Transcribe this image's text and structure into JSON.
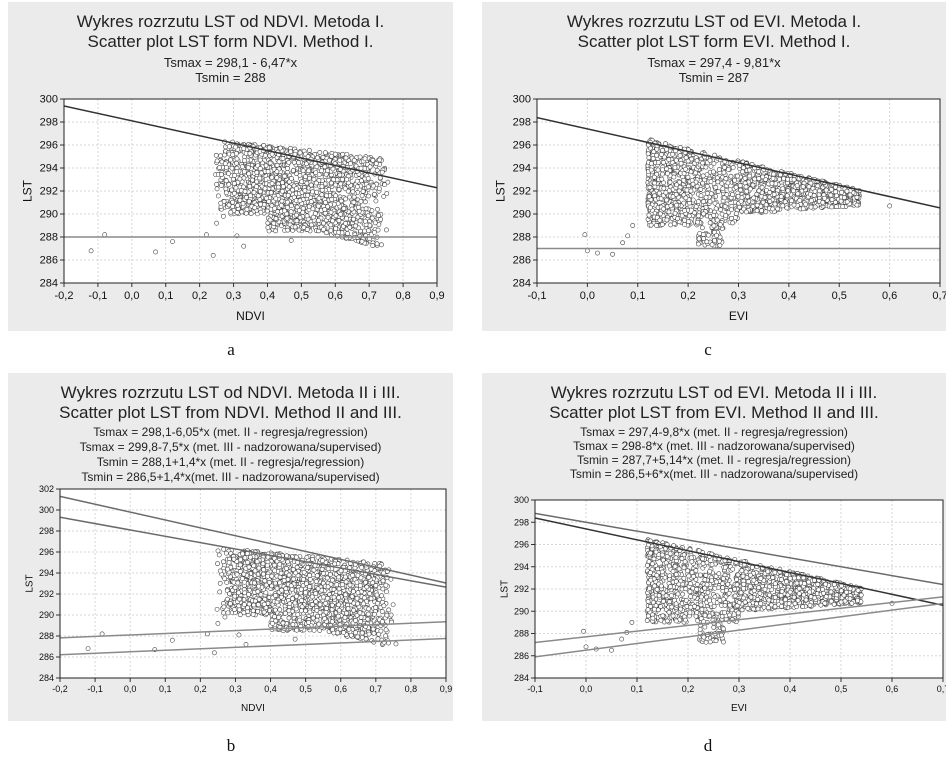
{
  "captions": [
    "a",
    "c",
    "b",
    "d"
  ],
  "chart_data": [
    {
      "id": "a",
      "type": "scatter",
      "title": [
        "Wykres rozrzutu LST od NDVI. Metoda I.",
        "Scatter plot LST form NDVI. Method I."
      ],
      "equations": [
        "Tsmax = 298,1 - 6,47*x",
        "Tsmin = 288"
      ],
      "xlabel": "NDVI",
      "ylabel": "LST",
      "xlim": [
        -0.2,
        0.9
      ],
      "ylim": [
        284,
        300
      ],
      "xticks": [
        "-0,2",
        "-0,1",
        "0,0",
        "0,1",
        "0,2",
        "0,3",
        "0,4",
        "0,5",
        "0,6",
        "0,7",
        "0,8",
        "0,9"
      ],
      "yticks": [
        "284",
        "286",
        "288",
        "290",
        "292",
        "294",
        "296",
        "298",
        "300"
      ],
      "grid": true,
      "lines": [
        {
          "name": "Tsmax",
          "intercept": 298.1,
          "slope": -6.47,
          "color": "#333333"
        },
        {
          "name": "Tsmin",
          "intercept": 288,
          "slope": 0,
          "color": "#8a8a8a"
        }
      ],
      "cluster": {
        "x_range": [
          0.22,
          0.77
        ],
        "y_range": [
          287,
          296.2
        ]
      },
      "outliers": [
        [
          -0.12,
          286.8
        ],
        [
          -0.08,
          288.2
        ],
        [
          0.07,
          286.7
        ],
        [
          0.12,
          287.6
        ],
        [
          0.24,
          286.4
        ],
        [
          0.22,
          288.2
        ],
        [
          0.31,
          288.1
        ],
        [
          0.33,
          287.2
        ],
        [
          0.27,
          289.8
        ],
        [
          0.25,
          289.2
        ],
        [
          0.47,
          287.7
        ]
      ]
    },
    {
      "id": "c",
      "type": "scatter",
      "title": [
        "Wykres rozrzutu LST od EVI. Metoda I.",
        "Scatter plot LST form EVI. Method I."
      ],
      "equations": [
        "Tsmax = 297,4 - 9,81*x",
        "Tsmin = 287"
      ],
      "xlabel": "EVI",
      "ylabel": "LST",
      "xlim": [
        -0.1,
        0.7
      ],
      "ylim": [
        284,
        300
      ],
      "xticks": [
        "-0,1",
        "0,0",
        "0,1",
        "0,2",
        "0,3",
        "0,4",
        "0,5",
        "0,6",
        "0,7"
      ],
      "yticks": [
        "284",
        "286",
        "288",
        "290",
        "292",
        "294",
        "296",
        "298",
        "300"
      ],
      "grid": true,
      "lines": [
        {
          "name": "Tsmax",
          "intercept": 297.4,
          "slope": -9.81,
          "color": "#333333"
        },
        {
          "name": "Tsmin",
          "intercept": 287,
          "slope": 0,
          "color": "#8a8a8a"
        }
      ],
      "cluster": {
        "x_range": [
          0.08,
          0.56
        ],
        "y_range": [
          287,
          296.2
        ]
      },
      "outliers": [
        [
          -0.005,
          288.2
        ],
        [
          0.0,
          286.8
        ],
        [
          0.02,
          286.6
        ],
        [
          0.05,
          286.5
        ],
        [
          0.07,
          287.5
        ],
        [
          0.08,
          288.1
        ],
        [
          0.09,
          289.0
        ],
        [
          0.6,
          290.7
        ]
      ]
    },
    {
      "id": "b",
      "type": "scatter",
      "title": [
        "Wykres rozrzutu LST od NDVI. Metoda II i III.",
        "Scatter plot LST from NDVI. Method II and III."
      ],
      "equations": [
        "Tsmax = 298,1-6,05*x (met. II - regresja/regression)",
        "Tsmax = 299,8-7,5*x (met. III - nadzorowana/supervised)",
        "Tsmin = 288,1+1,4*x (met. II - regresja/regression)",
        "Tsmin = 286,5+1,4*x(met. III - nadzorowana/supervised)"
      ],
      "xlabel": "NDVI",
      "ylabel": "LST",
      "xlim": [
        -0.2,
        0.9
      ],
      "ylim": [
        284,
        302
      ],
      "xticks": [
        "-0,2",
        "-0,1",
        "0,0",
        "0,1",
        "0,2",
        "0,3",
        "0,4",
        "0,5",
        "0,6",
        "0,7",
        "0,8",
        "0,9"
      ],
      "yticks": [
        "284",
        "286",
        "288",
        "290",
        "292",
        "294",
        "296",
        "298",
        "300",
        "302"
      ],
      "grid": true,
      "lines": [
        {
          "name": "Tsmax met. II",
          "intercept": 298.1,
          "slope": -6.05,
          "color": "#6a6a6a"
        },
        {
          "name": "Tsmax met. III",
          "intercept": 299.8,
          "slope": -7.5,
          "color": "#6a6a6a"
        },
        {
          "name": "Tsmin met. II",
          "intercept": 288.1,
          "slope": 1.4,
          "color": "#8a8a8a"
        },
        {
          "name": "Tsmin met. III",
          "intercept": 286.5,
          "slope": 1.4,
          "color": "#8a8a8a"
        }
      ],
      "cluster": {
        "x_range": [
          0.22,
          0.77
        ],
        "y_range": [
          287,
          296.2
        ]
      },
      "outliers": [
        [
          -0.12,
          286.8
        ],
        [
          -0.08,
          288.2
        ],
        [
          0.07,
          286.7
        ],
        [
          0.12,
          287.6
        ],
        [
          0.24,
          286.4
        ],
        [
          0.22,
          288.2
        ],
        [
          0.31,
          288.1
        ],
        [
          0.33,
          287.2
        ],
        [
          0.27,
          289.8
        ],
        [
          0.25,
          289.2
        ],
        [
          0.47,
          287.7
        ]
      ]
    },
    {
      "id": "d",
      "type": "scatter",
      "title": [
        "Wykres rozrzutu LST od EVI. Metoda II i III.",
        "Scatter plot LST from EVI. Method II and III."
      ],
      "equations": [
        "Tsmax = 297,4-9,8*x (met. II - regresja/regression)",
        "Tsmax = 298-8*x (met. III - nadzorowana/supervised)",
        "Tsmin = 287,7+5,14*x (met. II - regresja/regression)",
        "Tsmin = 286,5+6*x(met. III - nadzorowana/supervised)"
      ],
      "xlabel": "EVI",
      "ylabel": "LST",
      "xlim": [
        -0.1,
        0.7
      ],
      "ylim": [
        284,
        300
      ],
      "xticks": [
        "-0,1",
        "0,0",
        "0,1",
        "0,2",
        "0,3",
        "0,4",
        "0,5",
        "0,6",
        "0,7"
      ],
      "yticks": [
        "284",
        "286",
        "288",
        "290",
        "292",
        "294",
        "296",
        "298",
        "300"
      ],
      "grid": true,
      "lines": [
        {
          "name": "Tsmax met. II",
          "intercept": 297.4,
          "slope": -9.8,
          "color": "#333333"
        },
        {
          "name": "Tsmax met. III",
          "intercept": 298,
          "slope": -8,
          "color": "#6a6a6a"
        },
        {
          "name": "Tsmin met. II",
          "intercept": 287.7,
          "slope": 5.14,
          "color": "#8a8a8a"
        },
        {
          "name": "Tsmin met. III",
          "intercept": 286.5,
          "slope": 6,
          "color": "#8a8a8a"
        }
      ],
      "cluster": {
        "x_range": [
          0.08,
          0.56
        ],
        "y_range": [
          287,
          296.2
        ]
      },
      "outliers": [
        [
          -0.005,
          288.2
        ],
        [
          0.0,
          286.8
        ],
        [
          0.02,
          286.6
        ],
        [
          0.05,
          286.5
        ],
        [
          0.07,
          287.5
        ],
        [
          0.08,
          288.1
        ],
        [
          0.09,
          289.0
        ],
        [
          0.6,
          290.7
        ]
      ]
    }
  ]
}
